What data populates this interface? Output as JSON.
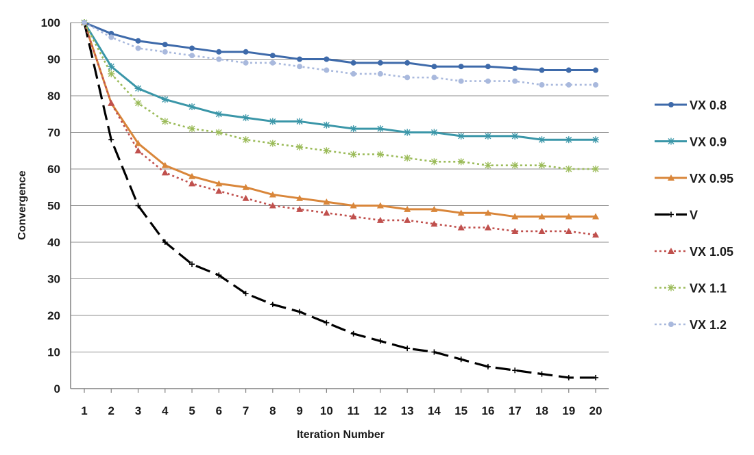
{
  "chart_data": {
    "type": "line",
    "title": "",
    "xlabel": "Iteration Number",
    "ylabel": "Convergence",
    "x": [
      1,
      2,
      3,
      4,
      5,
      6,
      7,
      8,
      9,
      10,
      11,
      12,
      13,
      14,
      15,
      16,
      17,
      18,
      19,
      20
    ],
    "xlim": [
      1,
      20
    ],
    "ylim": [
      0,
      100
    ],
    "y_ticks": [
      0,
      10,
      20,
      30,
      40,
      50,
      60,
      70,
      80,
      90,
      100
    ],
    "grid": "horizontal",
    "legend": "right",
    "series": [
      {
        "name": "VX 0.8",
        "color": "#3e6aaa",
        "line": "solid",
        "marker": "circle",
        "values": [
          100,
          97,
          95,
          94,
          93,
          92,
          92,
          91,
          90,
          90,
          89,
          89,
          89,
          88,
          88,
          88,
          87.5,
          87,
          87,
          87
        ]
      },
      {
        "name": "VX 0.9",
        "color": "#3a96a8",
        "line": "solid",
        "marker": "star",
        "values": [
          100,
          88,
          82,
          79,
          77,
          75,
          74,
          73,
          73,
          72,
          71,
          71,
          70,
          70,
          69,
          69,
          69,
          68,
          68,
          68
        ]
      },
      {
        "name": "VX 0.95",
        "color": "#d9863a",
        "line": "solid",
        "marker": "triangle",
        "values": [
          100,
          78,
          67,
          61,
          58,
          56,
          55,
          53,
          52,
          51,
          50,
          50,
          49,
          49,
          48,
          48,
          47,
          47,
          47,
          47
        ]
      },
      {
        "name": "V",
        "color": "#000000",
        "line": "dashed",
        "marker": "plus",
        "values": [
          100,
          68,
          50,
          40,
          34,
          31,
          26,
          23,
          21,
          18,
          15,
          13,
          11,
          10,
          8,
          6,
          5,
          4,
          3,
          3
        ]
      },
      {
        "name": "VX 1.05",
        "color": "#c0504d",
        "line": "dotted",
        "marker": "triangle",
        "values": [
          100,
          78,
          65,
          59,
          56,
          54,
          52,
          50,
          49,
          48,
          47,
          46,
          46,
          45,
          44,
          44,
          43,
          43,
          43,
          42
        ]
      },
      {
        "name": "VX 1.1",
        "color": "#9bbb59",
        "line": "dotted",
        "marker": "star",
        "values": [
          100,
          86,
          78,
          73,
          71,
          70,
          68,
          67,
          66,
          65,
          64,
          64,
          63,
          62,
          62,
          61,
          61,
          61,
          60,
          60
        ]
      },
      {
        "name": "VX 1.2",
        "color": "#a9b9dd",
        "line": "dotted",
        "marker": "circle",
        "values": [
          100,
          96,
          93,
          92,
          91,
          90,
          89,
          89,
          88,
          87,
          86,
          86,
          85,
          85,
          84,
          84,
          84,
          83,
          83,
          83
        ]
      }
    ]
  }
}
